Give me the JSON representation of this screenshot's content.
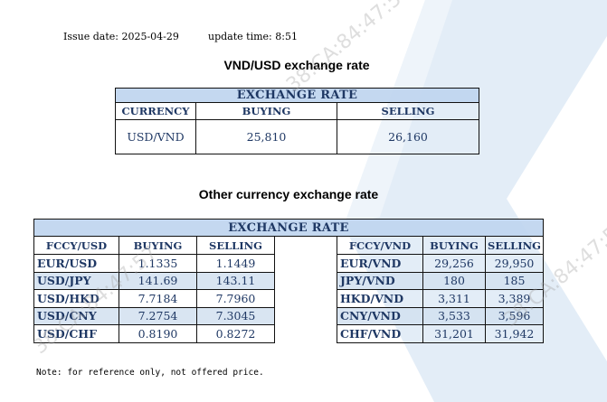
{
  "header": {
    "issue_date_label": "Issue date:",
    "issue_date": "2025-04-29",
    "update_time_label": "update time:",
    "update_time": "8:51"
  },
  "vnd_usd": {
    "title": "VND/USD exchange rate",
    "band": "EXCHANGE RATE",
    "columns": [
      "CURRENCY",
      "BUYING",
      "SELLING"
    ],
    "row": {
      "currency": "USD/VND",
      "buying": "25,810",
      "selling": "26,160"
    }
  },
  "other": {
    "title": "Other currency exchange rate",
    "band": "EXCHANGE  RATE",
    "left_columns": [
      "FCCY/USD",
      "BUYING",
      "SELLING"
    ],
    "right_columns": [
      "FCCY/VND",
      "BUYING",
      "SELLING"
    ],
    "rows": [
      {
        "l_pair": "EUR/USD",
        "l_buy": "1.1335",
        "l_sell": "1.1449",
        "r_pair": "EUR/VND",
        "r_buy": "29,256",
        "r_sell": "29,950"
      },
      {
        "l_pair": "USD/JPY",
        "l_buy": "141.69",
        "l_sell": "143.11",
        "r_pair": "JPY/VND",
        "r_buy": "180",
        "r_sell": "185"
      },
      {
        "l_pair": "USD/HKD",
        "l_buy": "7.7184",
        "l_sell": "7.7960",
        "r_pair": "HKD/VND",
        "r_buy": "3,311",
        "r_sell": "3,389"
      },
      {
        "l_pair": "USD/CNY",
        "l_buy": "7.2754",
        "l_sell": "7.3045",
        "r_pair": "CNY/VND",
        "r_buy": "3,533",
        "r_sell": "3,596"
      },
      {
        "l_pair": "USD/CHF",
        "l_buy": "0.8190",
        "l_sell": "0.8272",
        "r_pair": "CHF/VND",
        "r_buy": "31,201",
        "r_sell": "31,942"
      }
    ]
  },
  "note": "Note: for reference only, not offered price.",
  "watermark": "38:CA:84:47:57",
  "colors": {
    "text": "#1f3864",
    "band": "#bed4ee",
    "stripe": "#d2e0f0",
    "bg_logo": "#dbe7f4"
  }
}
